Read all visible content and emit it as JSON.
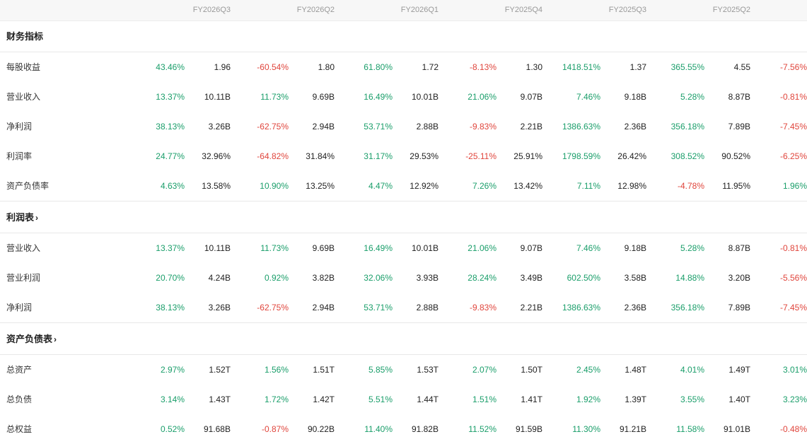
{
  "periods": [
    "FY2026Q3",
    "FY2026Q2",
    "FY2026Q1",
    "FY2025Q4",
    "FY2025Q3",
    "FY2025Q2"
  ],
  "colors": {
    "up": "#1a9e6a",
    "down": "#e0453c",
    "text": "#222222",
    "muted": "#999999"
  },
  "sections": [
    {
      "title": "财务指标",
      "has_chevron": false,
      "rows": [
        {
          "label": "每股收益",
          "cells": [
            [
              "43.46%",
              "1.96"
            ],
            [
              "-60.54%",
              "1.80"
            ],
            [
              "61.80%",
              "1.72"
            ],
            [
              "-8.13%",
              "1.30"
            ],
            [
              "1418.51%",
              "1.37"
            ],
            [
              "365.55%",
              "4.55"
            ],
            [
              "-7.56%",
              ""
            ]
          ]
        },
        {
          "label": "营业收入",
          "cells": [
            [
              "13.37%",
              "10.11B"
            ],
            [
              "11.73%",
              "9.69B"
            ],
            [
              "16.49%",
              "10.01B"
            ],
            [
              "21.06%",
              "9.07B"
            ],
            [
              "7.46%",
              "9.18B"
            ],
            [
              "5.28%",
              "8.87B"
            ],
            [
              "-0.81%",
              ""
            ]
          ]
        },
        {
          "label": "净利润",
          "cells": [
            [
              "38.13%",
              "3.26B"
            ],
            [
              "-62.75%",
              "2.94B"
            ],
            [
              "53.71%",
              "2.88B"
            ],
            [
              "-9.83%",
              "2.21B"
            ],
            [
              "1386.63%",
              "2.36B"
            ],
            [
              "356.18%",
              "7.89B"
            ],
            [
              "-7.45%",
              ""
            ]
          ]
        },
        {
          "label": "利润率",
          "cells": [
            [
              "24.77%",
              "32.96%"
            ],
            [
              "-64.82%",
              "31.84%"
            ],
            [
              "31.17%",
              "29.53%"
            ],
            [
              "-25.11%",
              "25.91%"
            ],
            [
              "1798.59%",
              "26.42%"
            ],
            [
              "308.52%",
              "90.52%"
            ],
            [
              "-6.25%",
              ""
            ]
          ]
        },
        {
          "label": "资产负债率",
          "cells": [
            [
              "4.63%",
              "13.58%"
            ],
            [
              "10.90%",
              "13.25%"
            ],
            [
              "4.47%",
              "12.92%"
            ],
            [
              "7.26%",
              "13.42%"
            ],
            [
              "7.11%",
              "12.98%"
            ],
            [
              "-4.78%",
              "11.95%"
            ],
            [
              "1.96%",
              ""
            ]
          ]
        }
      ]
    },
    {
      "title": "利润表",
      "has_chevron": true,
      "rows": [
        {
          "label": "营业收入",
          "cells": [
            [
              "13.37%",
              "10.11B"
            ],
            [
              "11.73%",
              "9.69B"
            ],
            [
              "16.49%",
              "10.01B"
            ],
            [
              "21.06%",
              "9.07B"
            ],
            [
              "7.46%",
              "9.18B"
            ],
            [
              "5.28%",
              "8.87B"
            ],
            [
              "-0.81%",
              ""
            ]
          ]
        },
        {
          "label": "营业利润",
          "cells": [
            [
              "20.70%",
              "4.24B"
            ],
            [
              "0.92%",
              "3.82B"
            ],
            [
              "32.06%",
              "3.93B"
            ],
            [
              "28.24%",
              "3.49B"
            ],
            [
              "602.50%",
              "3.58B"
            ],
            [
              "14.88%",
              "3.20B"
            ],
            [
              "-5.56%",
              ""
            ]
          ]
        },
        {
          "label": "净利润",
          "cells": [
            [
              "38.13%",
              "3.26B"
            ],
            [
              "-62.75%",
              "2.94B"
            ],
            [
              "53.71%",
              "2.88B"
            ],
            [
              "-9.83%",
              "2.21B"
            ],
            [
              "1386.63%",
              "2.36B"
            ],
            [
              "356.18%",
              "7.89B"
            ],
            [
              "-7.45%",
              ""
            ]
          ]
        }
      ]
    },
    {
      "title": "资产负债表",
      "has_chevron": true,
      "rows": [
        {
          "label": "总资产",
          "cells": [
            [
              "2.97%",
              "1.52T"
            ],
            [
              "1.56%",
              "1.51T"
            ],
            [
              "5.85%",
              "1.53T"
            ],
            [
              "2.07%",
              "1.50T"
            ],
            [
              "2.45%",
              "1.48T"
            ],
            [
              "4.01%",
              "1.49T"
            ],
            [
              "3.01%",
              ""
            ]
          ]
        },
        {
          "label": "总负债",
          "cells": [
            [
              "3.14%",
              "1.43T"
            ],
            [
              "1.72%",
              "1.42T"
            ],
            [
              "5.51%",
              "1.44T"
            ],
            [
              "1.51%",
              "1.41T"
            ],
            [
              "1.92%",
              "1.39T"
            ],
            [
              "3.55%",
              "1.40T"
            ],
            [
              "3.23%",
              ""
            ]
          ]
        },
        {
          "label": "总权益",
          "cells": [
            [
              "0.52%",
              "91.68B"
            ],
            [
              "-0.87%",
              "90.22B"
            ],
            [
              "11.40%",
              "91.82B"
            ],
            [
              "11.52%",
              "91.59B"
            ],
            [
              "11.30%",
              "91.21B"
            ],
            [
              "11.58%",
              "91.01B"
            ],
            [
              "-0.48%",
              ""
            ]
          ]
        }
      ]
    }
  ]
}
